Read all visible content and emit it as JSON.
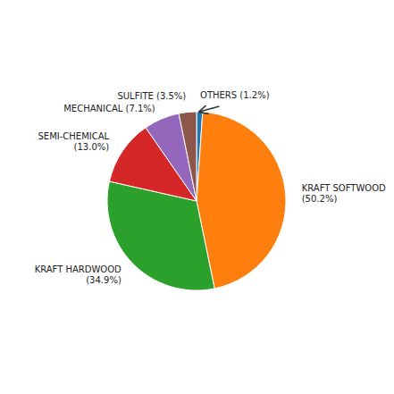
{
  "chart_data": {
    "type": "pie",
    "categories": [
      "OTHERS (1.2%)",
      "KRAFT SOFTWOOD\n(50.2%)",
      "KRAFT HARDWOOD\n(34.9%)",
      "SEMI-CHEMICAL\n(13.0%)",
      "MECHANICAL (7.1%)",
      "SULFITE (3.5%)"
    ],
    "values": [
      1.2,
      50.2,
      34.9,
      13.0,
      7.1,
      3.5
    ]
  }
}
